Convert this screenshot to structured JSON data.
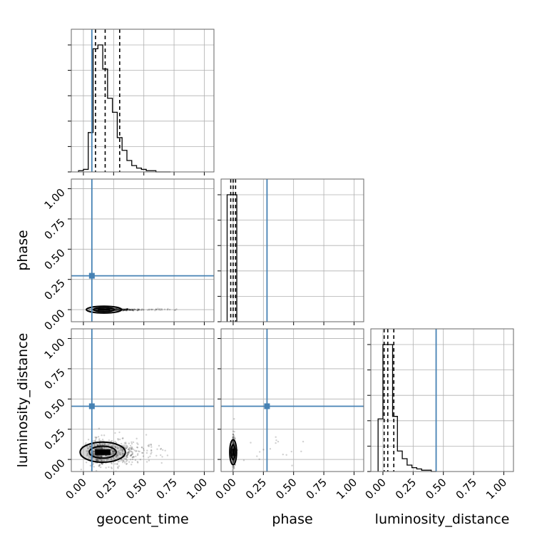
{
  "chart_data": {
    "type": "corner",
    "parameters": [
      "geocent_time",
      "phase",
      "luminosity_distance"
    ],
    "axis_range": [
      -0.1,
      1.08
    ],
    "tick_labels": [
      "0.00",
      "0.25",
      "0.50",
      "0.75",
      "1.00"
    ],
    "grid": true,
    "truths": {
      "geocent_time": 0.07,
      "phase": 0.28,
      "luminosity_distance": 0.44
    },
    "truth_color": "#4682b4",
    "quantiles": {
      "geocent_time": [
        0.1,
        0.18,
        0.3
      ],
      "phase": [
        -0.02,
        0.0,
        0.02
      ],
      "luminosity_distance": [
        0.01,
        0.04,
        0.09
      ]
    },
    "histograms": {
      "geocent_time": {
        "bin_edges": [
          -0.04,
          0.0,
          0.04,
          0.08,
          0.12,
          0.16,
          0.2,
          0.24,
          0.28,
          0.32,
          0.36,
          0.4,
          0.44,
          0.48,
          0.52,
          0.56,
          0.6,
          0.64,
          0.68,
          0.72
        ],
        "counts": [
          1,
          2,
          31,
          97,
          100,
          81,
          58,
          47,
          27,
          17,
          9,
          5,
          3,
          2,
          1,
          1,
          0,
          0,
          0
        ]
      },
      "phase": {
        "bin_edges": [
          -0.05,
          0.0,
          0.03
        ],
        "counts": [
          100,
          100
        ]
      },
      "luminosity_distance": {
        "bin_edges": [
          -0.04,
          0.0,
          0.04,
          0.08,
          0.12,
          0.16,
          0.2,
          0.24,
          0.28,
          0.32,
          0.36,
          0.4,
          0.44
        ],
        "counts": [
          41,
          99,
          99,
          43,
          16,
          10,
          5,
          3,
          2,
          1,
          1,
          0
        ]
      }
    },
    "joint_2d": [
      {
        "x": "geocent_time",
        "y": "phase",
        "center": [
          0.17,
          0.0
        ],
        "spread": [
          0.07,
          0.003
        ],
        "tail_to": 0.78
      },
      {
        "x": "geocent_time",
        "y": "luminosity_distance",
        "center": [
          0.16,
          0.06
        ],
        "spread": [
          0.09,
          0.04
        ],
        "tail_to": 0.7
      },
      {
        "x": "phase",
        "y": "luminosity_distance",
        "center": [
          0.0,
          0.06
        ],
        "spread": [
          0.004,
          0.05
        ],
        "tail_to": 0.58
      }
    ]
  },
  "labels": {
    "x_geocent": "geocent_time",
    "x_phase": "phase",
    "x_lumdist": "luminosity_distance",
    "y_phase": "phase",
    "y_lumdist": "luminosity_distance"
  }
}
